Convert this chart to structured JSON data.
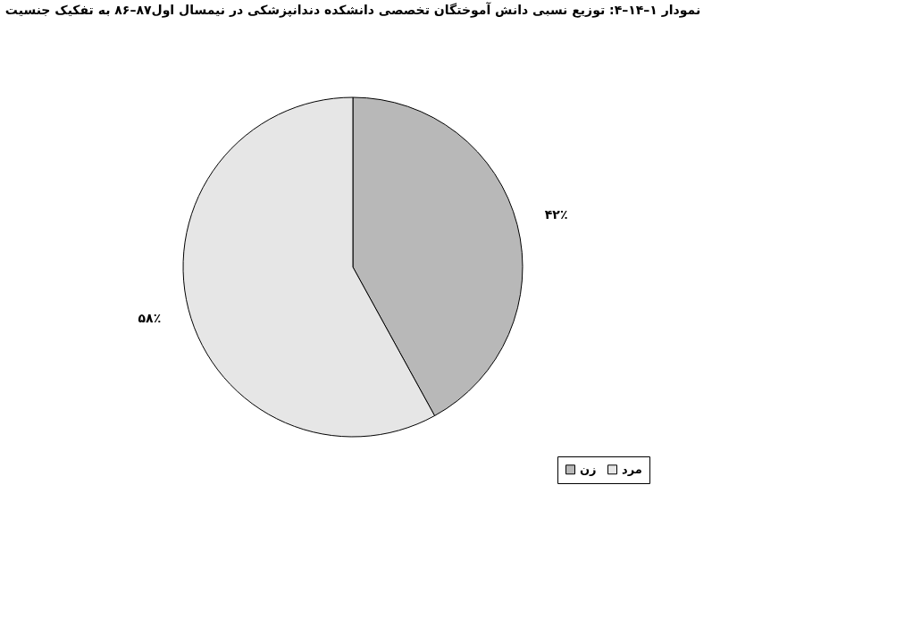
{
  "chart_data": {
    "type": "pie",
    "title": "نمودار ۱–۱۴–۴: توزیع نسبی دانش آموختگان تخصصی دانشکده دندانپزشکی در نیمسال اول۸۷–۸۶ به تفکیک جنسیت",
    "categories": [
      "زن",
      "مرد"
    ],
    "values": [
      42,
      58
    ],
    "value_labels": [
      "۴۲٪",
      "۵۸٪"
    ],
    "colors": [
      "#b8b8b8",
      "#e6e6e6"
    ],
    "legend": "bottom right"
  }
}
